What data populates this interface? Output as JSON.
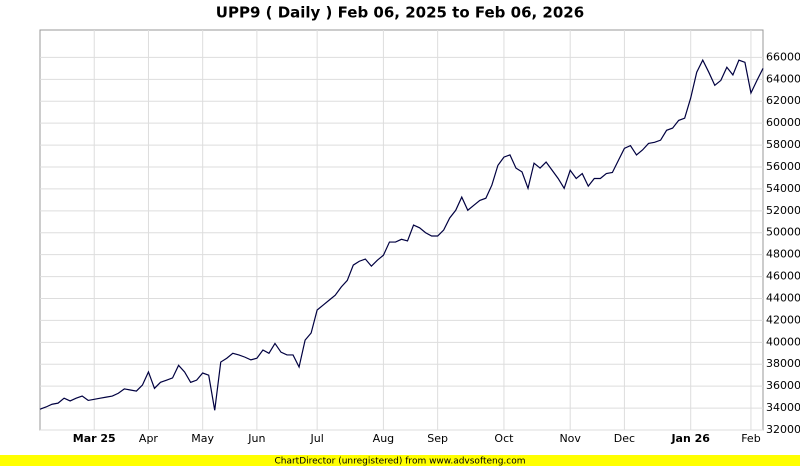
{
  "chart_data": {
    "type": "line",
    "title": "UPP9 ( Daily ) Feb 06, 2025 to Feb 06, 2026",
    "footer": "ChartDirector (unregistered) from www.advsofteng.com",
    "categories": [
      null,
      null,
      null,
      null,
      null,
      null,
      null,
      null,
      null,
      "Mar 25",
      null,
      null,
      null,
      null,
      null,
      null,
      null,
      null,
      "Apr",
      null,
      null,
      null,
      null,
      null,
      null,
      null,
      null,
      "May",
      null,
      null,
      null,
      null,
      null,
      null,
      null,
      null,
      "Jun",
      null,
      null,
      null,
      null,
      null,
      null,
      null,
      null,
      null,
      "Jul",
      null,
      null,
      null,
      null,
      null,
      null,
      null,
      null,
      null,
      null,
      "Aug",
      null,
      null,
      null,
      null,
      null,
      null,
      null,
      null,
      "Sep",
      null,
      null,
      null,
      null,
      null,
      null,
      null,
      null,
      null,
      null,
      "Oct",
      null,
      null,
      null,
      null,
      null,
      null,
      null,
      null,
      null,
      null,
      "Nov",
      null,
      null,
      null,
      null,
      null,
      null,
      null,
      null,
      "Dec",
      null,
      null,
      null,
      null,
      null,
      null,
      null,
      null,
      null,
      null,
      "Jan 26",
      null,
      null,
      null,
      null,
      null,
      null,
      null,
      null,
      null,
      "Feb",
      null,
      null
    ],
    "series": [
      {
        "name": "UPP9",
        "color": "#000040",
        "values": [
          33900,
          34100,
          34350,
          34450,
          34900,
          34650,
          34900,
          35100,
          34700,
          34800,
          34900,
          35000,
          35100,
          35350,
          35750,
          35650,
          35550,
          36100,
          37300,
          35800,
          36350,
          36550,
          36750,
          37900,
          37300,
          36350,
          36550,
          37200,
          37000,
          33800,
          38200,
          38550,
          39000,
          38850,
          38650,
          38400,
          38550,
          39300,
          39000,
          39900,
          39100,
          38850,
          38850,
          37750,
          40200,
          40850,
          42950,
          43400,
          43850,
          44300,
          45050,
          45650,
          47050,
          47400,
          47600,
          46950,
          47500,
          47950,
          49150,
          49150,
          49400,
          49250,
          50700,
          50450,
          50000,
          49700,
          49700,
          50250,
          51350,
          52050,
          53250,
          52050,
          52500,
          52950,
          53150,
          54350,
          56150,
          56900,
          57100,
          55900,
          55550,
          54050,
          56350,
          55900,
          56450,
          55700,
          54950,
          54050,
          55700,
          54950,
          55400,
          54250,
          54950,
          54950,
          55400,
          55500,
          56600,
          57700,
          57950,
          57100,
          57550,
          58150,
          58250,
          58450,
          59350,
          59550,
          60250,
          60450,
          62300,
          64650,
          65750,
          64650,
          63450,
          63900,
          65100,
          64400,
          65750,
          65550,
          62750,
          63900,
          65000
        ]
      }
    ],
    "ylim": [
      32000,
      68500
    ],
    "yticks": [
      32000,
      34000,
      36000,
      38000,
      40000,
      42000,
      44000,
      46000,
      48000,
      50000,
      52000,
      54000,
      56000,
      58000,
      60000,
      62000,
      64000,
      66000
    ],
    "grid": true
  }
}
